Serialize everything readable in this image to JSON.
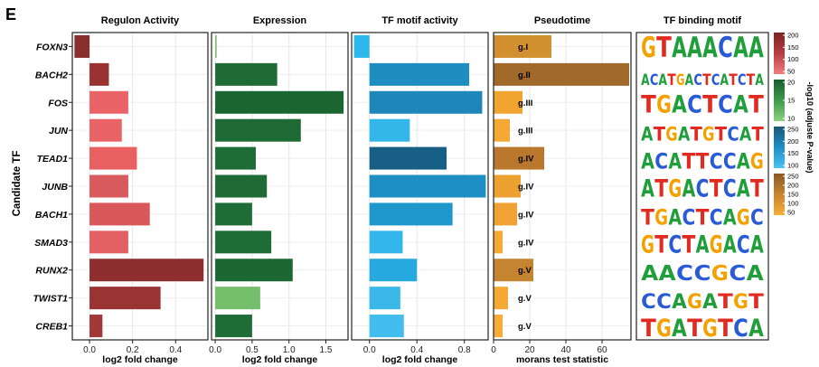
{
  "panel_letter": "E",
  "y_axis_label": "Candidate TF",
  "legend_title": "-log10 (adjuste P-value)",
  "chart_data": [
    {
      "type": "bar",
      "orientation": "horizontal",
      "title": "Regulon Activity",
      "xlabel": "log2 fold change",
      "xlim": [
        -0.08,
        0.55
      ],
      "ticks": [
        0.0,
        0.2,
        0.4
      ],
      "tick_labels": [
        "0.0",
        "0.2",
        "0.4"
      ],
      "categories": [
        "FOXN3",
        "BACH2",
        "FOS",
        "JUN",
        "TEAD1",
        "JUNB",
        "BACH1",
        "SMAD3",
        "RUNX2",
        "TWIST1",
        "CREB1"
      ],
      "values": [
        -0.07,
        0.09,
        0.18,
        0.15,
        0.22,
        0.18,
        0.28,
        0.18,
        0.53,
        0.33,
        0.06
      ],
      "colors": [
        "#8b2e2e",
        "#9b3232",
        "#ea6467",
        "#ea6467",
        "#e86062",
        "#d85a5c",
        "#d9595b",
        "#e36063",
        "#8e2e2e",
        "#9a3333",
        "#a23838"
      ]
    },
    {
      "type": "bar",
      "orientation": "horizontal",
      "title": "Expression",
      "xlabel": "log2 fold change",
      "xlim": [
        -0.05,
        1.8
      ],
      "ticks": [
        0.0,
        0.5,
        1.0,
        1.5
      ],
      "tick_labels": [
        "0.0",
        "0.5",
        "1.0",
        "1.5"
      ],
      "categories": [
        "FOXN3",
        "BACH2",
        "FOS",
        "JUN",
        "TEAD1",
        "JUNB",
        "BACH1",
        "SMAD3",
        "RUNX2",
        "TWIST1",
        "CREB1"
      ],
      "values": [
        0.02,
        0.84,
        1.74,
        1.16,
        0.55,
        0.7,
        0.5,
        0.76,
        1.05,
        0.61,
        0.5
      ],
      "colors": [
        "#7cc16f",
        "#1f6b35",
        "#1b6531",
        "#1d6a34",
        "#1f6d36",
        "#1e6b35",
        "#1f6d36",
        "#1f6d36",
        "#1c6833",
        "#75be6b",
        "#1f6d36"
      ]
    },
    {
      "type": "bar",
      "orientation": "horizontal",
      "title": "TF motif activity",
      "xlabel": "log2 fold change",
      "xlim": [
        -0.15,
        1.0
      ],
      "ticks": [
        0.0,
        0.4,
        0.8
      ],
      "tick_labels": [
        "0.0",
        "0.4",
        "0.8"
      ],
      "categories": [
        "FOXN3",
        "BACH2",
        "FOS",
        "JUN",
        "TEAD1",
        "JUNB",
        "BACH1",
        "SMAD3",
        "RUNX2",
        "TWIST1",
        "CREB1"
      ],
      "values": [
        -0.13,
        0.84,
        0.95,
        0.34,
        0.65,
        0.98,
        0.7,
        0.28,
        0.4,
        0.26,
        0.29
      ],
      "colors": [
        "#2bb9ec",
        "#1e8dc0",
        "#1f86ba",
        "#33b7ea",
        "#175f85",
        "#1d8fc4",
        "#1d97cc",
        "#33b6e9",
        "#25a9df",
        "#3ab8ea",
        "#42bdee"
      ]
    },
    {
      "type": "bar",
      "orientation": "horizontal",
      "title": "Pseudotime",
      "xlabel": "morans test statistic",
      "xlim": [
        0,
        76
      ],
      "ticks": [
        0,
        20,
        40,
        60
      ],
      "tick_labels": [
        "0",
        "20",
        "40",
        "60"
      ],
      "categories": [
        "FOXN3",
        "BACH2",
        "FOS",
        "JUN",
        "TEAD1",
        "JUNB",
        "BACH1",
        "SMAD3",
        "RUNX2",
        "TWIST1",
        "CREB1"
      ],
      "values": [
        32,
        75,
        16,
        9,
        28,
        15,
        13,
        5,
        22,
        8,
        5
      ],
      "bar_labels": [
        "g.I",
        "g.II",
        "g.III",
        "g.III",
        "g.IV",
        "g.IV",
        "g.IV",
        "g.IV",
        "g.V",
        "g.V",
        "g.V"
      ],
      "colors": [
        "#d39030",
        "#a26a2a",
        "#f2a431",
        "#f5a833",
        "#b9782d",
        "#eda131",
        "#f0a332",
        "#f6aa36",
        "#c58430",
        "#f5a833",
        "#f7ac38"
      ]
    }
  ],
  "motif_panel": {
    "title": "TF binding motif",
    "motifs": [
      "GTAAACAA",
      "ACATGACTCATCTA",
      "TGACTCAT",
      "ATGATGTCAT",
      "ACATTCCAG",
      "ATGACTCAT",
      "TGACTCAGC",
      "GTCTAGACA",
      "AACCGCA",
      "CCAGATGT",
      "TGATGTCA"
    ]
  },
  "legends": [
    {
      "ticks": [
        "200",
        "150",
        "100",
        "50"
      ],
      "colors": [
        "#7a2424",
        "#b83e43",
        "#f07d80"
      ]
    },
    {
      "ticks": [
        "20",
        "15",
        "10"
      ],
      "colors": [
        "#1a5c2e",
        "#3e9a4d",
        "#8fd07d"
      ]
    },
    {
      "ticks": [
        "250",
        "200",
        "150",
        "100"
      ],
      "colors": [
        "#1a5878",
        "#1f8fc4",
        "#4cc3f0"
      ]
    },
    {
      "ticks": [
        "250",
        "200",
        "150",
        "100",
        "50"
      ],
      "colors": [
        "#8a5a26",
        "#c6852f",
        "#f7ae3a"
      ]
    }
  ]
}
